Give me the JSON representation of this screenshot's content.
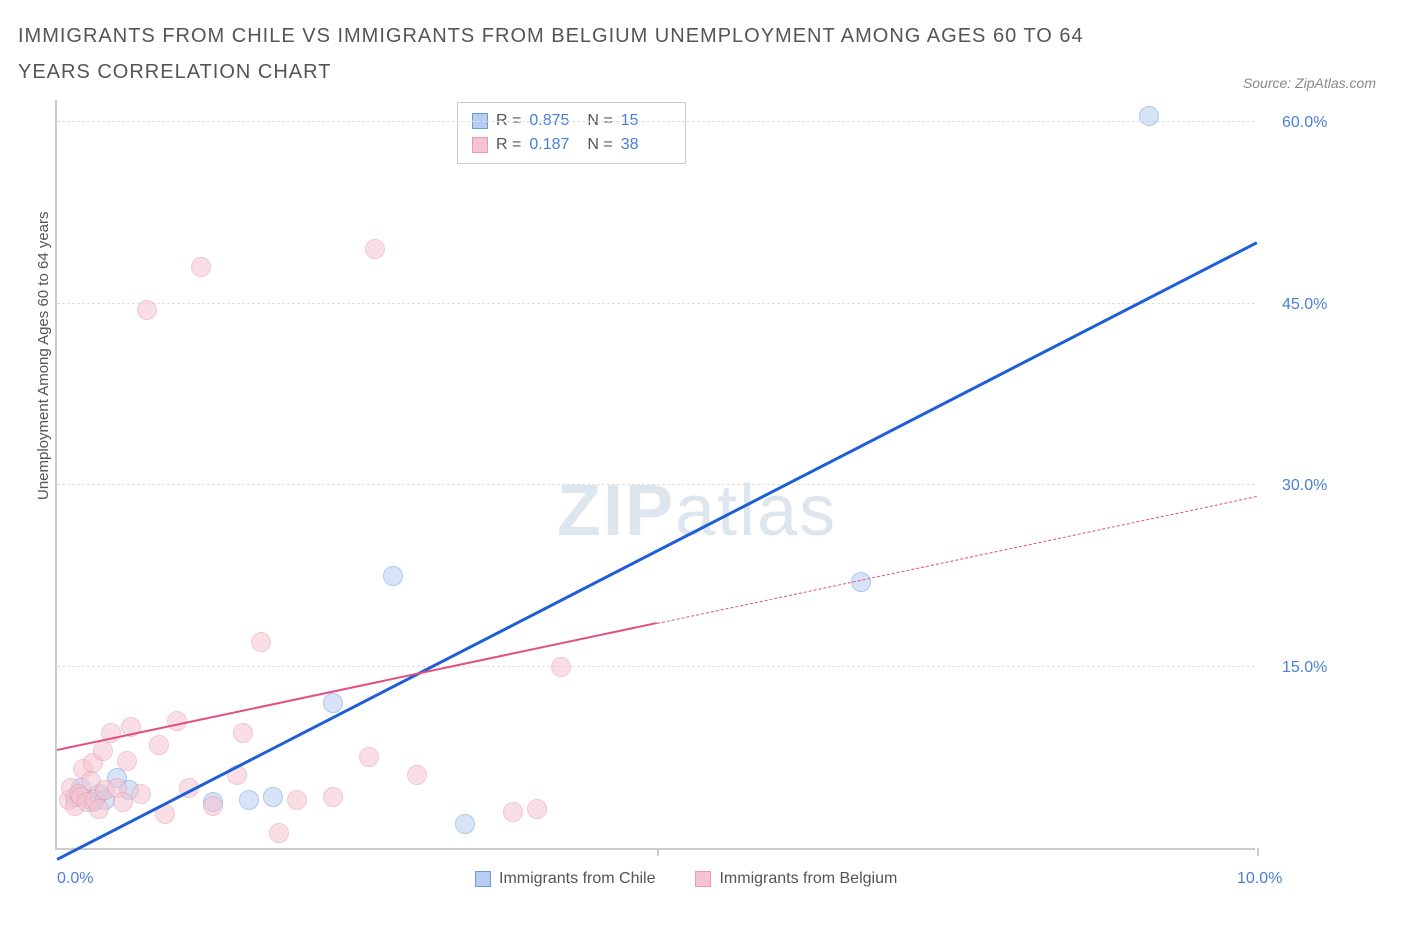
{
  "title": "IMMIGRANTS FROM CHILE VS IMMIGRANTS FROM BELGIUM UNEMPLOYMENT AMONG AGES 60 TO 64 YEARS CORRELATION CHART",
  "source": "Source: ZipAtlas.com",
  "y_axis_label": "Unemployment Among Ages 60 to 64 years",
  "watermark_bold": "ZIP",
  "watermark_light": "atlas",
  "chart": {
    "type": "scatter",
    "xlim": [
      0,
      10
    ],
    "ylim": [
      0,
      62
    ],
    "x_ticks": [
      0.0,
      10.0
    ],
    "x_tick_labels": [
      "0.0%",
      "10.0%"
    ],
    "x_minor_ticks": [
      5.0
    ],
    "y_ticks": [
      15.0,
      30.0,
      45.0,
      60.0
    ],
    "y_tick_labels": [
      "15.0%",
      "30.0%",
      "45.0%",
      "60.0%"
    ],
    "grid_color": "#e0e0e0",
    "axis_color": "#cccccc",
    "background_color": "#ffffff",
    "tick_label_color": "#4a7fd8",
    "tick_label_fontsize": 16,
    "axis_label_fontsize": 15,
    "series": [
      {
        "name": "Immigrants from Chile",
        "fill_color": "#b8cdf0",
        "stroke_color": "#6a9be0",
        "fill_opacity": 0.55,
        "trend_color": "#1e5fd9",
        "trend_width": 2.5,
        "trend_dash": "solid",
        "R": "0.875",
        "N": "15",
        "marker_r": 10,
        "points": [
          [
            0.15,
            4.2
          ],
          [
            0.2,
            5.0
          ],
          [
            0.3,
            3.8
          ],
          [
            0.35,
            4.5
          ],
          [
            0.5,
            5.8
          ],
          [
            1.3,
            3.8
          ],
          [
            1.6,
            4.0
          ],
          [
            1.8,
            4.2
          ],
          [
            2.3,
            12.0
          ],
          [
            2.8,
            22.5
          ],
          [
            3.4,
            2.0
          ],
          [
            6.7,
            22.0
          ],
          [
            9.1,
            60.5
          ],
          [
            0.4,
            4.0
          ],
          [
            0.6,
            4.8
          ]
        ],
        "trend": {
          "x1": 0.0,
          "y1": -1.0,
          "x2": 10.0,
          "y2": 50.0,
          "solid_until_x": 10.0
        }
      },
      {
        "name": "Immigrants from Belgium",
        "fill_color": "#f5c4d0",
        "stroke_color": "#e89bb0",
        "fill_opacity": 0.55,
        "trend_color": "#e05080",
        "trend_width": 2,
        "trend_dash": "dashed",
        "R": "0.187",
        "N": "38",
        "marker_r": 10,
        "points": [
          [
            0.1,
            4.0
          ],
          [
            0.12,
            5.0
          ],
          [
            0.15,
            3.5
          ],
          [
            0.18,
            4.5
          ],
          [
            0.2,
            4.2
          ],
          [
            0.22,
            6.5
          ],
          [
            0.25,
            3.8
          ],
          [
            0.28,
            5.5
          ],
          [
            0.3,
            7.0
          ],
          [
            0.32,
            4.0
          ],
          [
            0.35,
            3.2
          ],
          [
            0.38,
            8.0
          ],
          [
            0.4,
            4.8
          ],
          [
            0.45,
            9.5
          ],
          [
            0.5,
            5.0
          ],
          [
            0.55,
            3.8
          ],
          [
            0.58,
            7.2
          ],
          [
            0.62,
            10.0
          ],
          [
            0.7,
            4.5
          ],
          [
            0.75,
            44.5
          ],
          [
            0.85,
            8.5
          ],
          [
            0.9,
            2.8
          ],
          [
            1.0,
            10.5
          ],
          [
            1.1,
            5.0
          ],
          [
            1.2,
            48.0
          ],
          [
            1.3,
            3.5
          ],
          [
            1.5,
            6.0
          ],
          [
            1.55,
            9.5
          ],
          [
            1.7,
            17.0
          ],
          [
            1.85,
            1.2
          ],
          [
            2.0,
            4.0
          ],
          [
            2.3,
            4.2
          ],
          [
            2.6,
            7.5
          ],
          [
            2.65,
            49.5
          ],
          [
            3.0,
            6.0
          ],
          [
            3.8,
            3.0
          ],
          [
            4.0,
            3.2
          ],
          [
            4.2,
            15.0
          ]
        ],
        "trend": {
          "x1": 0.0,
          "y1": 8.0,
          "x2": 10.0,
          "y2": 29.0,
          "solid_until_x": 5.0
        }
      }
    ]
  },
  "stats_box": {
    "rows": [
      {
        "swatch_fill": "#b8cdf0",
        "swatch_border": "#6a9be0",
        "r_label": "R =",
        "r_val": "0.875",
        "n_label": "N =",
        "n_val": "15"
      },
      {
        "swatch_fill": "#f5c4d0",
        "swatch_border": "#e89bb0",
        "r_label": "R =",
        "r_val": "0.187",
        "n_label": "N =",
        "n_val": "38"
      }
    ]
  },
  "legend": {
    "items": [
      {
        "swatch_fill": "#b8cdf0",
        "swatch_border": "#6a9be0",
        "label": "Immigrants from Chile"
      },
      {
        "swatch_fill": "#f5c4d0",
        "swatch_border": "#e89bb0",
        "label": "Immigrants from Belgium"
      }
    ]
  }
}
